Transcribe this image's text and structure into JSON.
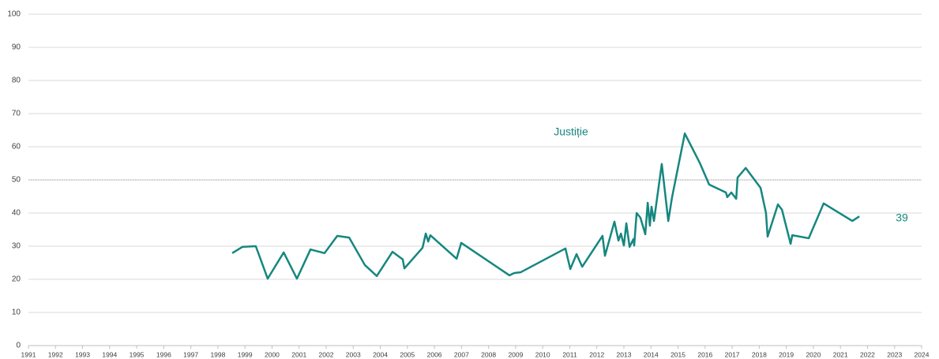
{
  "chart_data": {
    "type": "line",
    "annotation": "Justiție",
    "end_label": "39",
    "reference_line": 50,
    "grid": true,
    "xlim": [
      1991,
      2024
    ],
    "xticks": [
      1991,
      1992,
      1993,
      1994,
      1995,
      1996,
      1997,
      1998,
      1999,
      2000,
      2001,
      2002,
      2003,
      2004,
      2005,
      2006,
      2007,
      2008,
      2009,
      2010,
      2011,
      2012,
      2013,
      2014,
      2015,
      2016,
      2017,
      2018,
      2019,
      2020,
      2021,
      2022,
      2023,
      2024
    ],
    "ylim": [
      0,
      100
    ],
    "yticks": [
      0,
      10,
      20,
      30,
      40,
      50,
      60,
      70,
      80,
      90,
      100
    ],
    "series": [
      {
        "name": "Justiție",
        "color": "#15877f",
        "x": [
          1998.53,
          1998.91,
          1999.4,
          1999.84,
          2000.43,
          2000.92,
          2001.42,
          2001.94,
          2002.41,
          2002.85,
          2003.43,
          2003.87,
          2004.45,
          2004.83,
          2004.89,
          2005.56,
          2005.68,
          2005.77,
          2005.85,
          2006.82,
          2006.99,
          2008.77,
          2008.95,
          2009.18,
          2010.84,
          2011.02,
          2011.25,
          2011.46,
          2012.21,
          2012.3,
          2012.65,
          2012.8,
          2012.89,
          2013.0,
          2013.09,
          2013.21,
          2013.35,
          2013.38,
          2013.47,
          2013.61,
          2013.79,
          2013.88,
          2013.96,
          2014.02,
          2014.11,
          2014.4,
          2014.64,
          2014.78,
          2015.25,
          2015.8,
          2016.15,
          2016.77,
          2016.82,
          2016.97,
          2017.15,
          2017.2,
          2017.5,
          2018.05,
          2018.25,
          2018.31,
          2018.69,
          2018.84,
          2019.16,
          2019.22,
          2019.83,
          2020.38,
          2021.44,
          2021.7
        ],
        "values": [
          27.9,
          29.8,
          30.0,
          20.2,
          28.1,
          20.2,
          29.0,
          27.9,
          33.1,
          32.6,
          24.3,
          21.0,
          28.3,
          26.0,
          23.3,
          29.5,
          33.8,
          31.4,
          33.3,
          26.2,
          31.0,
          21.2,
          21.9,
          22.1,
          29.3,
          23.1,
          27.6,
          23.8,
          33.1,
          27.1,
          37.4,
          31.7,
          33.8,
          30.2,
          36.9,
          29.8,
          32.1,
          30.2,
          40.0,
          38.6,
          33.6,
          43.1,
          36.2,
          41.9,
          37.6,
          54.8,
          37.6,
          44.8,
          64.0,
          55.2,
          48.6,
          46.2,
          44.8,
          46.2,
          44.3,
          50.7,
          53.6,
          47.6,
          40.0,
          32.9,
          42.6,
          41.0,
          30.7,
          33.3,
          32.4,
          42.9,
          37.6,
          39.0
        ]
      }
    ]
  }
}
